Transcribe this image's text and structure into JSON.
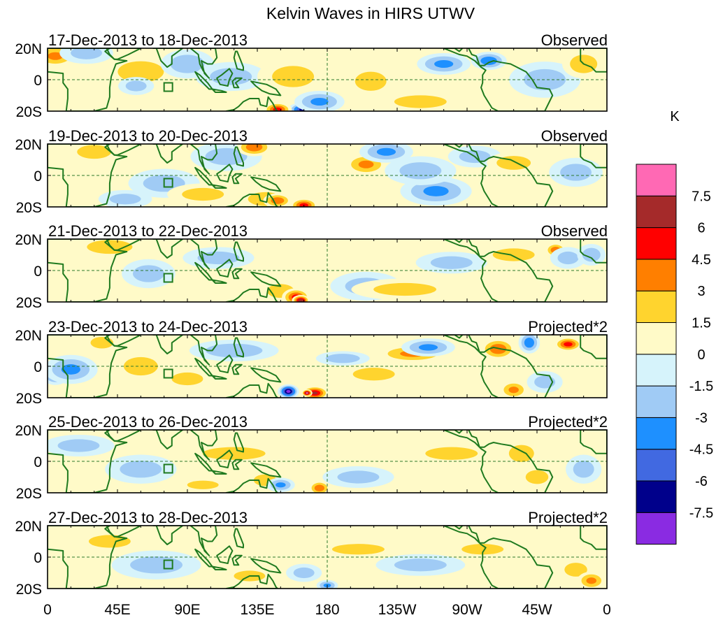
{
  "title": "Kelvin Waves in HIRS UTWV",
  "colorbar": {
    "unit": "K",
    "levels": [
      -9,
      -7.5,
      -6,
      -4.5,
      -3,
      -1.5,
      0,
      1.5,
      3,
      4.5,
      6,
      7.5,
      9
    ],
    "labels": [
      "-7.5",
      "-6",
      "-4.5",
      "-3",
      "-1.5",
      "0",
      "1.5",
      "3",
      "4.5",
      "6",
      "7.5"
    ],
    "colors": [
      "#8a2be2",
      "#00008b",
      "#4169e1",
      "#1e90ff",
      "#a0cbf5",
      "#d6f3fb",
      "#fffac8",
      "#ffd42e",
      "#ff7f00",
      "#ff0000",
      "#a52a2a",
      "#ff69b4"
    ]
  },
  "panels": [
    {
      "date": "17-Dec-2013 to 18-Dec-2013",
      "label": "Observed",
      "blobs": [
        [
          5,
          15,
          12,
          6,
          3
        ],
        [
          25,
          17,
          15,
          6,
          -1.5
        ],
        [
          60,
          5,
          22,
          10,
          1.5
        ],
        [
          90,
          10,
          15,
          8,
          -2
        ],
        [
          118,
          2,
          20,
          8,
          -1.5
        ],
        [
          153,
          2,
          8,
          5,
          4
        ],
        [
          158,
          2,
          20,
          10,
          1.5
        ],
        [
          165,
          -19,
          9,
          4,
          -7
        ],
        [
          148,
          -19,
          8,
          4,
          5
        ],
        [
          175,
          -14,
          14,
          6,
          -3
        ],
        [
          210,
          -4,
          6,
          4,
          4
        ],
        [
          208,
          -1,
          15,
          9,
          1.5
        ],
        [
          255,
          10,
          15,
          6,
          -3
        ],
        [
          284,
          12,
          10,
          5,
          -4
        ],
        [
          320,
          0,
          20,
          10,
          -1.5
        ],
        [
          345,
          10,
          12,
          8,
          2
        ],
        [
          240,
          -14,
          25,
          6,
          1.5
        ],
        [
          57,
          -4,
          10,
          5,
          -1.5
        ]
      ]
    },
    {
      "date": "19-Dec-2013 to 20-Dec-2013",
      "label": "Observed",
      "blobs": [
        [
          30,
          15,
          15,
          6,
          2
        ],
        [
          75,
          -5,
          20,
          8,
          -1.5
        ],
        [
          115,
          12,
          20,
          8,
          -1.5
        ],
        [
          133,
          18,
          10,
          5,
          4
        ],
        [
          140,
          -15,
          15,
          6,
          2
        ],
        [
          148,
          -16,
          8,
          4,
          4
        ],
        [
          165,
          -19,
          8,
          4,
          5
        ],
        [
          205,
          7,
          12,
          6,
          3
        ],
        [
          218,
          15,
          15,
          6,
          -3
        ],
        [
          250,
          -10,
          20,
          8,
          -3
        ],
        [
          240,
          3,
          20,
          8,
          -1.5
        ],
        [
          275,
          12,
          15,
          6,
          -1.5
        ],
        [
          300,
          8,
          15,
          6,
          2
        ],
        [
          340,
          2,
          15,
          8,
          -1.5
        ],
        [
          100,
          -12,
          20,
          6,
          1.5
        ],
        [
          50,
          -15,
          15,
          5,
          -1.5
        ]
      ]
    },
    {
      "date": "21-Dec-2013 to 22-Dec-2013",
      "label": "Observed",
      "blobs": [
        [
          40,
          15,
          20,
          6,
          2
        ],
        [
          65,
          -2,
          15,
          8,
          -1.5
        ],
        [
          110,
          8,
          20,
          6,
          -1.5
        ],
        [
          150,
          -13,
          12,
          6,
          2
        ],
        [
          160,
          -17,
          8,
          5,
          5
        ],
        [
          163,
          -19,
          5,
          3,
          7
        ],
        [
          205,
          -10,
          20,
          8,
          -1.5
        ],
        [
          260,
          5,
          20,
          6,
          -1.5
        ],
        [
          300,
          10,
          20,
          6,
          1.5
        ],
        [
          327,
          13,
          6,
          4,
          4
        ],
        [
          335,
          8,
          10,
          6,
          -1.5
        ],
        [
          350,
          10,
          8,
          6,
          -2
        ],
        [
          230,
          -12,
          30,
          6,
          1.5
        ]
      ]
    },
    {
      "date": "23-Dec-2013 to 24-Dec-2013",
      "label": "Projected*2",
      "blobs": [
        [
          5,
          -5,
          8,
          6,
          -4
        ],
        [
          15,
          -2,
          15,
          8,
          -3
        ],
        [
          35,
          15,
          10,
          5,
          2
        ],
        [
          57,
          0,
          8,
          4,
          4
        ],
        [
          60,
          0,
          15,
          8,
          2
        ],
        [
          90,
          -8,
          15,
          6,
          1.5
        ],
        [
          120,
          10,
          25,
          6,
          -2
        ],
        [
          155,
          -16,
          6,
          4,
          -8
        ],
        [
          172,
          -17,
          8,
          4,
          6
        ],
        [
          167,
          -17,
          3,
          2,
          8
        ],
        [
          190,
          5,
          15,
          4,
          -2
        ],
        [
          210,
          -5,
          20,
          6,
          1.5
        ],
        [
          235,
          8,
          20,
          5,
          3
        ],
        [
          245,
          12,
          15,
          5,
          -3
        ],
        [
          290,
          11,
          10,
          6,
          4
        ],
        [
          310,
          15,
          6,
          6,
          -4
        ],
        [
          335,
          14,
          8,
          4,
          5
        ],
        [
          320,
          -10,
          10,
          6,
          -1.5
        ],
        [
          300,
          -15,
          8,
          5,
          3
        ]
      ]
    },
    {
      "date": "25-Dec-2013 to 26-Dec-2013",
      "label": "Projected*2",
      "blobs": [
        [
          20,
          10,
          20,
          6,
          -1.5
        ],
        [
          60,
          -5,
          20,
          8,
          -1.5
        ],
        [
          120,
          5,
          30,
          6,
          1.5
        ],
        [
          140,
          -12,
          10,
          5,
          2
        ],
        [
          150,
          -15,
          8,
          4,
          -3
        ],
        [
          175,
          -17,
          6,
          4,
          4
        ],
        [
          200,
          -10,
          20,
          6,
          -1.5
        ],
        [
          260,
          5,
          25,
          6,
          1.5
        ],
        [
          305,
          5,
          12,
          8,
          1.5
        ],
        [
          315,
          -10,
          10,
          6,
          2
        ],
        [
          345,
          -5,
          10,
          8,
          -1.5
        ],
        [
          100,
          -15,
          15,
          4,
          1.5
        ]
      ]
    },
    {
      "date": "27-Dec-2013 to 28-Dec-2013",
      "label": "Projected*2",
      "blobs": [
        [
          40,
          10,
          20,
          6,
          1.5
        ],
        [
          70,
          -5,
          25,
          8,
          -1.5
        ],
        [
          130,
          -12,
          15,
          5,
          1.5
        ],
        [
          165,
          -10,
          10,
          5,
          -1.5
        ],
        [
          180,
          -18,
          6,
          3,
          -3
        ],
        [
          200,
          5,
          25,
          5,
          1.5
        ],
        [
          240,
          -5,
          25,
          6,
          -1.5
        ],
        [
          280,
          5,
          20,
          5,
          1.5
        ],
        [
          340,
          -8,
          10,
          6,
          2
        ],
        [
          350,
          -15,
          8,
          5,
          3
        ]
      ]
    }
  ],
  "axes": {
    "lat_labels": [
      "20N",
      "0",
      "20S"
    ],
    "lon_labels": [
      "0",
      "45E",
      "90E",
      "135E",
      "180",
      "135W",
      "90W",
      "45W",
      "0"
    ],
    "lat_range": [
      -20,
      20
    ],
    "lon_range": [
      0,
      360
    ]
  }
}
